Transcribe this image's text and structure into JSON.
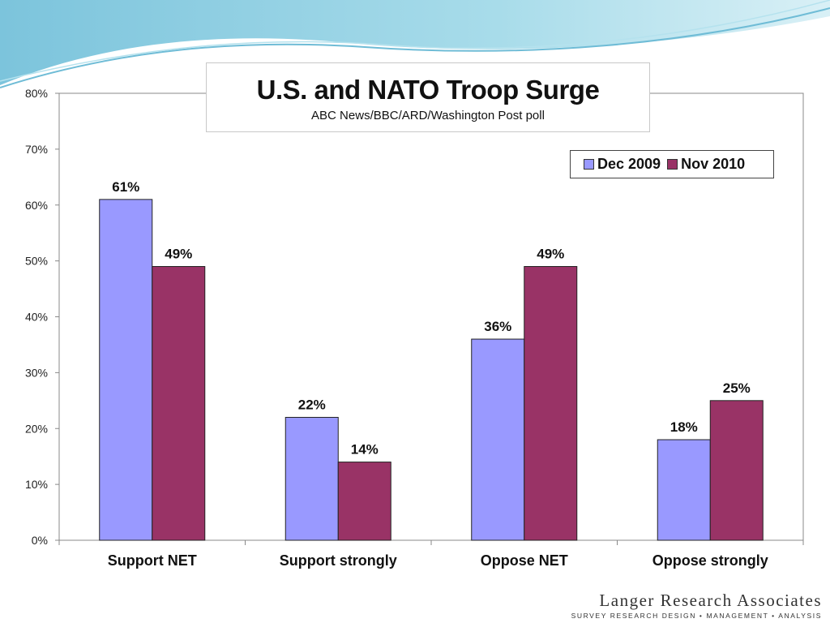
{
  "title": "U.S. and NATO Troop Surge",
  "subtitle": "ABC News/BBC/ARD/Washington Post poll",
  "logo": {
    "name": "Langer Research Associates",
    "tagline": "SURVEY RESEARCH DESIGN • MANAGEMENT • ANALYSIS"
  },
  "chart_data": {
    "type": "bar",
    "title": "U.S. and NATO Troop Surge",
    "subtitle": "ABC News/BBC/ARD/Washington Post poll",
    "categories": [
      "Support NET",
      "Support strongly",
      "Oppose NET",
      "Oppose strongly"
    ],
    "series": [
      {
        "name": "Dec 2009",
        "values": [
          61,
          22,
          36,
          18
        ],
        "color": "#9999ff",
        "labels": [
          "61%",
          "22%",
          "36%",
          "18%"
        ]
      },
      {
        "name": "Nov 2010",
        "values": [
          49,
          14,
          49,
          25
        ],
        "color": "#993366",
        "labels": [
          "49%",
          "14%",
          "49%",
          "25%"
        ]
      }
    ],
    "ylim": [
      0,
      80
    ],
    "yticks": [
      0,
      10,
      20,
      30,
      40,
      50,
      60,
      70,
      80
    ],
    "ytick_labels": [
      "0%",
      "10%",
      "20%",
      "30%",
      "40%",
      "50%",
      "60%",
      "70%",
      "80%"
    ],
    "xlabel": "",
    "ylabel": "",
    "grid": false,
    "legend_position": "top-right"
  }
}
